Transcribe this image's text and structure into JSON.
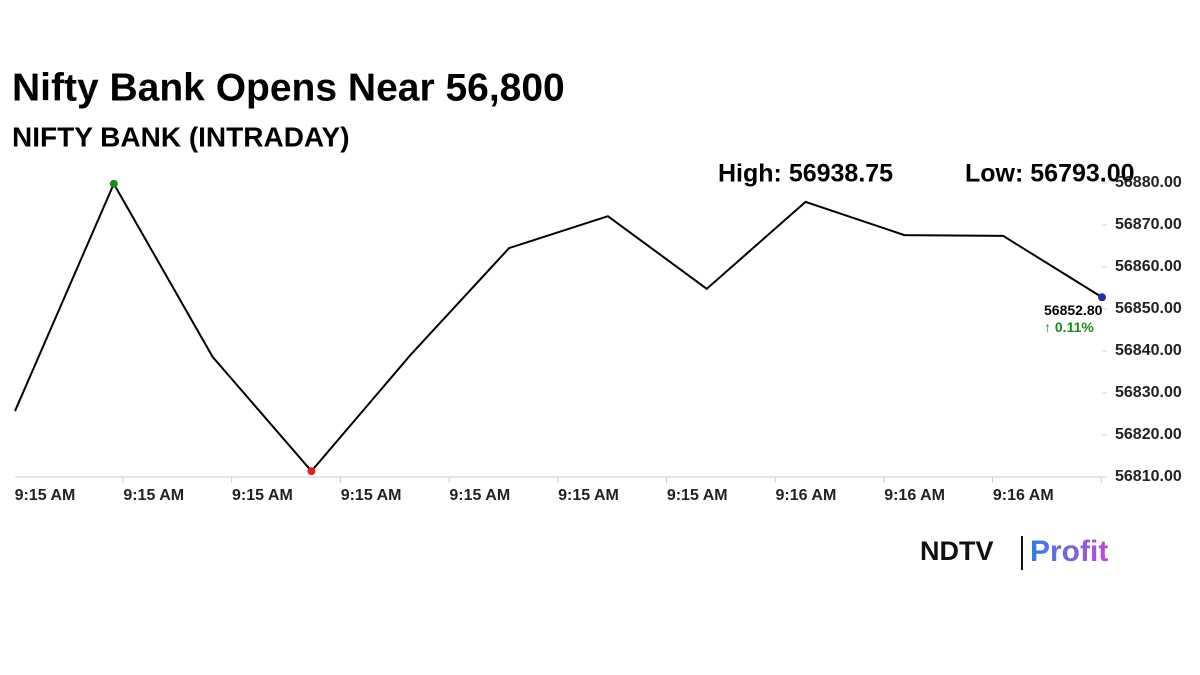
{
  "chart_data": {
    "type": "line",
    "title": "Nifty Bank Opens Near 56,800",
    "subtitle": "NIFTY BANK (INTRADAY)",
    "annotations": {
      "high": "High: 56938.75",
      "low": "Low: 56793.00"
    },
    "x_labels": [
      "9:15 AM",
      "9:15 AM",
      "9:15 AM",
      "9:15 AM",
      "9:15 AM",
      "9:15 AM",
      "9:15 AM",
      "9:16 AM",
      "9:16 AM",
      "9:16 AM"
    ],
    "values": [
      56825.7,
      56879.8,
      56838.6,
      56811.4,
      56839.0,
      56864.5,
      56872.1,
      56854.8,
      56875.5,
      56867.6,
      56867.4,
      56852.8
    ],
    "value_labels": {
      "last": "56852.80"
    },
    "change_label": "↑ 0.11%",
    "color": "#000000",
    "high_color": "#1a8a1a",
    "low_color": "#e02020",
    "last_color": "#1f2fa8",
    "change_color": "#1a8a1a",
    "ylim": [
      56810,
      56880
    ],
    "yticks": [
      {
        "value": 56810,
        "label": "56810.00"
      },
      {
        "value": 56820,
        "label": "56820.00"
      },
      {
        "value": 56830,
        "label": "56830.00"
      },
      {
        "value": 56840,
        "label": "56840.00"
      },
      {
        "value": 56850,
        "label": "56850.00"
      },
      {
        "value": 56860,
        "label": "56860.00"
      },
      {
        "value": 56870,
        "label": "56870.00"
      },
      {
        "value": 56880,
        "label": "56880.00"
      }
    ],
    "logo": {
      "brand": "NDTV",
      "product": "Profit"
    }
  }
}
